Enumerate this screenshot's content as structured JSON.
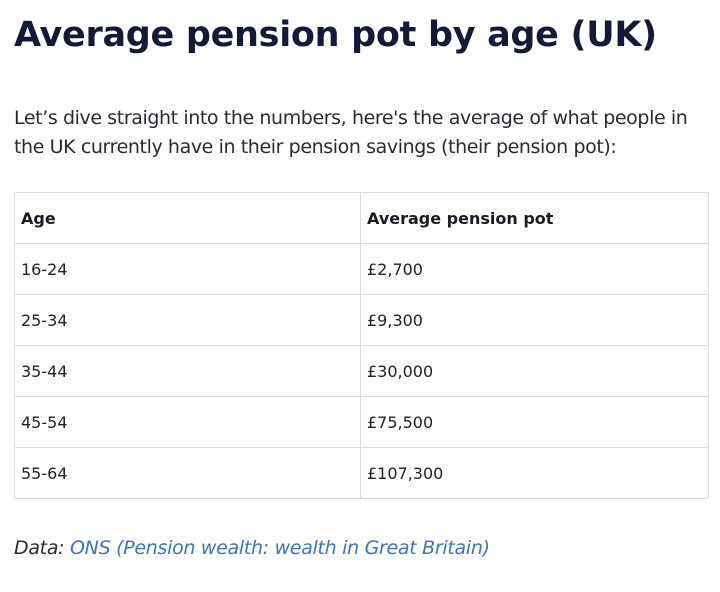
{
  "article": {
    "title": "Average pension pot by age (UK)",
    "intro": "Let’s dive straight into the numbers, here's the average of what people in the UK currently have in their pension savings (their pension pot):"
  },
  "table": {
    "headers": [
      "Age",
      "Average pension pot"
    ],
    "rows": [
      [
        "16-24",
        "£2,700"
      ],
      [
        "25-34",
        "£9,300"
      ],
      [
        "35-44",
        "£30,000"
      ],
      [
        "45-54",
        "£75,500"
      ],
      [
        "55-64",
        "£107,300"
      ]
    ]
  },
  "source": {
    "prefix": "Data:",
    "link_text": "ONS (Pension wealth: wealth in Great Britain)"
  },
  "colors": {
    "title": "#141a36",
    "link": "#3d72c4",
    "border": "#dcdcdc"
  }
}
